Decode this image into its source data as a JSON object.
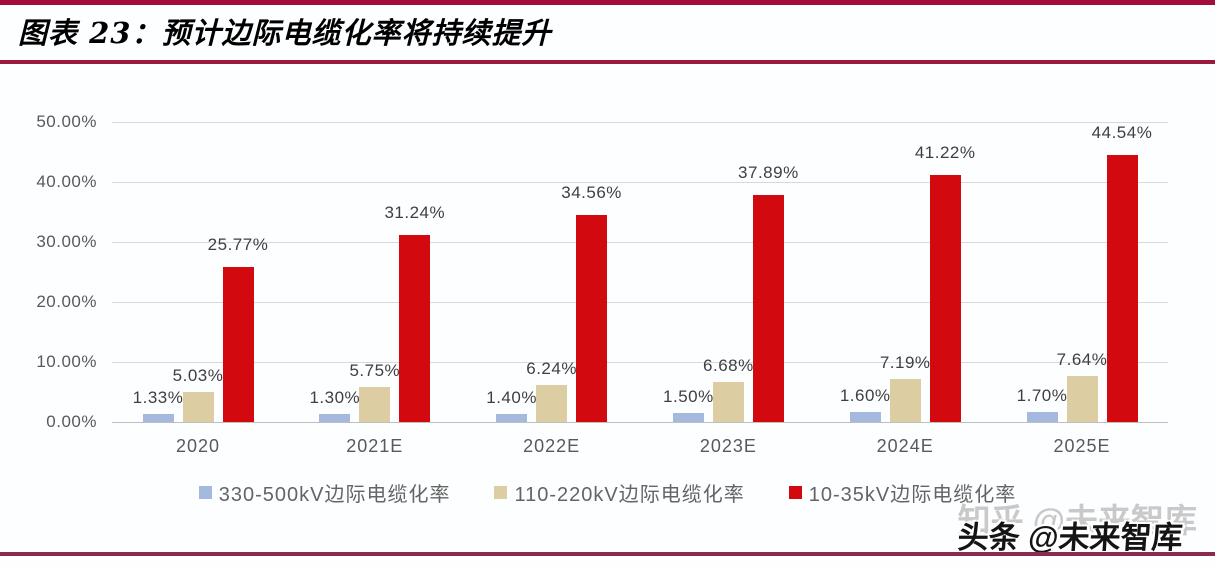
{
  "header": {
    "title": "图表 23：预计边际电缆化率将持续提升"
  },
  "colors": {
    "top_bar": "#a40d3b",
    "title_underline": "#9a1a3c",
    "bottom_bar": "#8c2950",
    "gridline": "#d9d9d9",
    "axis_line": "#bfbfbf",
    "axis_text": "#595959",
    "data_label_text": "#3f3f3f",
    "series_colors": [
      "#a4b9dd",
      "#ddcda3",
      "#d20a10"
    ]
  },
  "chart_data": {
    "type": "bar",
    "title": "预计边际电缆化率将持续提升",
    "categories": [
      "2020",
      "2021E",
      "2022E",
      "2023E",
      "2024E",
      "2025E"
    ],
    "series": [
      {
        "name": "330-500kV边际电缆化率",
        "color": "#a4b9dd",
        "values": [
          1.33,
          1.3,
          1.4,
          1.5,
          1.6,
          1.7
        ]
      },
      {
        "name": "110-220kV边际电缆化率",
        "color": "#ddcda3",
        "values": [
          5.03,
          5.75,
          6.24,
          6.68,
          7.19,
          7.64
        ]
      },
      {
        "name": "10-35kV边际电缆化率",
        "color": "#d20a10",
        "values": [
          25.77,
          31.24,
          34.56,
          37.89,
          41.22,
          44.54
        ]
      }
    ],
    "value_label_suffix": "%",
    "xlabel": "",
    "ylabel": "",
    "ylim": [
      0,
      50
    ],
    "ytick_step": 10,
    "yticks": [
      "0.00%",
      "10.00%",
      "20.00%",
      "30.00%",
      "40.00%",
      "50.00%"
    ],
    "grid": true,
    "legend_position": "bottom"
  },
  "watermarks": {
    "back": "知乎 @未来智库",
    "front": "头条 @未来智库"
  }
}
